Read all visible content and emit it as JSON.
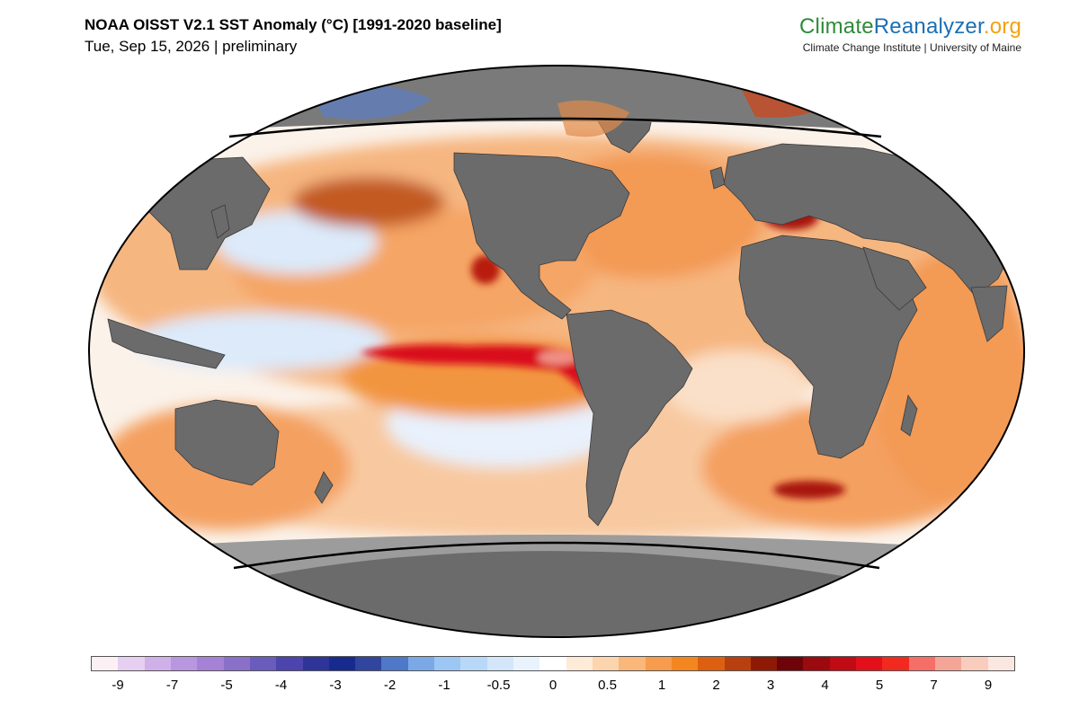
{
  "header": {
    "title": "NOAA OISST V2.1 SST Anomaly (°C) [1991-2020 baseline]",
    "subtitle": "Tue, Sep 15, 2026 | preliminary"
  },
  "brand": {
    "part1": "Climate",
    "part2": "Reanalyzer",
    "part3": ".org",
    "tagline": "Climate Change Institute | University of Maine"
  },
  "colorbar": {
    "colors": [
      "#fdf0f5",
      "#e6cff0",
      "#cfb0e8",
      "#b996e0",
      "#a582d6",
      "#8a70c8",
      "#6a5cbd",
      "#4b45ad",
      "#2f3598",
      "#172b8e",
      "#30459e",
      "#4f78c9",
      "#7aa9e6",
      "#9cc6f3",
      "#b8d8f7",
      "#d3e6fa",
      "#e9f3fd",
      "#ffffff",
      "#fdebd8",
      "#fcd4ad",
      "#f9b77a",
      "#f79b4c",
      "#f4861f",
      "#dc6010",
      "#b8400e",
      "#8e1a06",
      "#6e0409",
      "#9b0a0e",
      "#c10b14",
      "#e3101a",
      "#f2291f",
      "#f56e68",
      "#f5a598",
      "#f8cdbd",
      "#fbe7e2"
    ],
    "ticks": [
      "-9",
      "-7",
      "-5",
      "-4",
      "-3",
      "-2",
      "-1",
      "-0.5",
      "0",
      "0.5",
      "1",
      "2",
      "3",
      "4",
      "5",
      "7",
      "9"
    ]
  },
  "map": {
    "projection": "Robinson",
    "colors": {
      "land": "#6b6b6b",
      "ice": "#9c9c9c",
      "neutral_ocean": "#fbf2ea",
      "warm_ocean": "#f4a060",
      "strong_warm": "#e3101a",
      "cool_ocean": "#d5e6f8"
    }
  }
}
